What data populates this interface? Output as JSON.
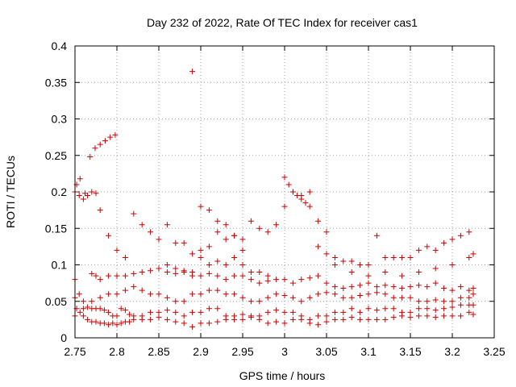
{
  "chart_data": {
    "type": "scatter",
    "title": "Day 232 of 2022, Rate Of TEC Index for receiver cas1",
    "xlabel": "GPS time / hours",
    "ylabel": "ROTI / TECUs",
    "xlim": [
      2.75,
      3.25
    ],
    "ylim": [
      0,
      0.4
    ],
    "xticks": [
      2.75,
      2.8,
      2.85,
      2.9,
      2.95,
      3.0,
      3.05,
      3.1,
      3.15,
      3.2,
      3.25
    ],
    "xtick_labels": [
      "2.75",
      "2.8",
      "2.85",
      "2.9",
      "2.95",
      "3",
      "3.05",
      "3.1",
      "3.15",
      "3.2",
      "3.25"
    ],
    "yticks": [
      0,
      0.05,
      0.1,
      0.15,
      0.2,
      0.25,
      0.3,
      0.35,
      0.4
    ],
    "ytick_labels": [
      "0",
      "0.05",
      "0.1",
      "0.15",
      "0.2",
      "0.25",
      "0.3",
      "0.35",
      "0.4"
    ],
    "grid": true,
    "marker": "+",
    "series_color": "#cc0000",
    "series": [
      {
        "name": "ROTI",
        "x": [
          2.75,
          2.752,
          2.756,
          2.76,
          2.765,
          2.77,
          2.775,
          2.78,
          2.785,
          2.79,
          2.795,
          2.8,
          2.805,
          2.81,
          2.815,
          2.82,
          2.83,
          2.84,
          2.85,
          2.86,
          2.87,
          2.88,
          2.89,
          2.9,
          2.91,
          2.92,
          2.93,
          2.94,
          2.95,
          2.96,
          2.97,
          2.98,
          2.99,
          3.0,
          3.01,
          3.02,
          3.03,
          3.04,
          3.05,
          3.06,
          3.07,
          3.08,
          3.09,
          3.1,
          3.11,
          3.12,
          3.13,
          3.14,
          3.15,
          3.16,
          3.17,
          3.18,
          3.19,
          3.2,
          3.21,
          3.22,
          3.225,
          2.75,
          2.755,
          2.76,
          2.765,
          2.77,
          2.775,
          2.78,
          2.785,
          2.79,
          2.795,
          2.8,
          2.805,
          2.81,
          2.815,
          2.82,
          2.83,
          2.84,
          2.85,
          2.86,
          2.87,
          2.88,
          2.89,
          2.9,
          2.91,
          2.92,
          2.93,
          2.94,
          2.95,
          2.96,
          2.97,
          2.98,
          2.99,
          3.0,
          3.01,
          3.02,
          3.03,
          3.04,
          3.05,
          3.06,
          3.07,
          3.08,
          3.09,
          3.1,
          3.11,
          3.12,
          3.13,
          3.14,
          3.15,
          3.16,
          3.17,
          3.18,
          3.19,
          3.2,
          3.21,
          3.22,
          3.225,
          2.75,
          2.755,
          2.76,
          2.77,
          2.775,
          2.78,
          2.79,
          2.8,
          2.81,
          2.82,
          2.83,
          2.84,
          2.85,
          2.86,
          2.87,
          2.88,
          2.89,
          2.9,
          2.91,
          2.92,
          2.93,
          2.94,
          2.95,
          2.96,
          2.97,
          2.98,
          2.99,
          3.0,
          3.01,
          3.02,
          3.03,
          3.04,
          3.05,
          3.06,
          3.07,
          3.08,
          3.09,
          3.1,
          3.11,
          3.12,
          3.13,
          3.14,
          3.15,
          3.16,
          3.17,
          3.18,
          3.19,
          3.2,
          3.21,
          3.22,
          3.225,
          2.75,
          2.76,
          2.77,
          2.78,
          2.79,
          2.8,
          2.81,
          2.82,
          2.83,
          2.84,
          2.85,
          2.86,
          2.87,
          2.88,
          2.89,
          2.9,
          2.91,
          2.92,
          2.93,
          2.94,
          2.95,
          2.96,
          2.97,
          2.98,
          2.99,
          3.0,
          3.01,
          3.02,
          3.03,
          3.04,
          3.05,
          3.06,
          3.07,
          3.08,
          3.09,
          3.1,
          3.11,
          3.12,
          3.13,
          3.14,
          3.15,
          3.16,
          3.17,
          3.18,
          3.19,
          3.2,
          3.21,
          3.22,
          3.225,
          2.752,
          2.756,
          2.762,
          2.768,
          2.774,
          2.78,
          2.786,
          2.792,
          2.798,
          2.765,
          2.77,
          2.775,
          2.78,
          2.79,
          2.8,
          2.81,
          2.82,
          2.83,
          2.84,
          2.85,
          2.86,
          2.87,
          2.88,
          2.89,
          2.9,
          2.91,
          2.92,
          2.93,
          2.94,
          2.95,
          2.9,
          2.91,
          2.92,
          2.93,
          2.94,
          2.95,
          2.96,
          2.97,
          2.98,
          2.99,
          3.0,
          3.01,
          3.02,
          3.03,
          3.04,
          3.05,
          2.89,
          3.0,
          3.005,
          3.01,
          3.015,
          3.02,
          3.025,
          3.03,
          2.86,
          2.87,
          2.88,
          2.89,
          2.9,
          2.91,
          2.92,
          2.93,
          2.94,
          2.95,
          2.96,
          2.97,
          2.98,
          3.04,
          3.05,
          3.06,
          3.07,
          3.08,
          3.09,
          3.1,
          3.11,
          3.12,
          3.13,
          3.14,
          3.15,
          3.16,
          3.17,
          3.18,
          3.19,
          3.2,
          3.21,
          3.22,
          3.06,
          3.08,
          3.1,
          3.12,
          3.14,
          3.16,
          3.18,
          3.2,
          3.22,
          3.225
        ],
        "y": [
          0.055,
          0.04,
          0.035,
          0.03,
          0.025,
          0.022,
          0.022,
          0.02,
          0.02,
          0.018,
          0.02,
          0.018,
          0.02,
          0.022,
          0.022,
          0.025,
          0.025,
          0.025,
          0.028,
          0.025,
          0.022,
          0.02,
          0.015,
          0.02,
          0.02,
          0.022,
          0.025,
          0.025,
          0.025,
          0.028,
          0.025,
          0.02,
          0.022,
          0.02,
          0.025,
          0.025,
          0.02,
          0.018,
          0.022,
          0.025,
          0.025,
          0.028,
          0.025,
          0.025,
          0.025,
          0.025,
          0.028,
          0.03,
          0.028,
          0.03,
          0.03,
          0.028,
          0.03,
          0.03,
          0.03,
          0.035,
          0.032,
          0.08,
          0.06,
          0.05,
          0.042,
          0.04,
          0.04,
          0.04,
          0.038,
          0.035,
          0.03,
          0.03,
          0.04,
          0.038,
          0.032,
          0.03,
          0.03,
          0.035,
          0.035,
          0.038,
          0.035,
          0.03,
          0.035,
          0.035,
          0.04,
          0.04,
          0.03,
          0.03,
          0.032,
          0.03,
          0.03,
          0.035,
          0.038,
          0.035,
          0.035,
          0.03,
          0.025,
          0.03,
          0.03,
          0.035,
          0.035,
          0.04,
          0.035,
          0.04,
          0.038,
          0.04,
          0.04,
          0.035,
          0.035,
          0.04,
          0.04,
          0.038,
          0.04,
          0.042,
          0.045,
          0.045,
          0.045,
          0.2,
          0.195,
          0.19,
          0.088,
          0.085,
          0.08,
          0.085,
          0.085,
          0.085,
          0.088,
          0.09,
          0.092,
          0.095,
          0.09,
          0.088,
          0.09,
          0.085,
          0.085,
          0.088,
          0.085,
          0.08,
          0.085,
          0.085,
          0.08,
          0.075,
          0.078,
          0.08,
          0.08,
          0.075,
          0.08,
          0.082,
          0.085,
          0.075,
          0.07,
          0.068,
          0.07,
          0.072,
          0.075,
          0.07,
          0.072,
          0.07,
          0.068,
          0.07,
          0.072,
          0.07,
          0.075,
          0.068,
          0.065,
          0.07,
          0.065,
          0.068,
          0.03,
          0.04,
          0.05,
          0.055,
          0.06,
          0.06,
          0.065,
          0.07,
          0.065,
          0.06,
          0.06,
          0.055,
          0.05,
          0.05,
          0.06,
          0.06,
          0.065,
          0.065,
          0.06,
          0.06,
          0.055,
          0.05,
          0.05,
          0.055,
          0.06,
          0.058,
          0.055,
          0.05,
          0.055,
          0.06,
          0.062,
          0.06,
          0.055,
          0.055,
          0.058,
          0.06,
          0.062,
          0.06,
          0.055,
          0.055,
          0.055,
          0.05,
          0.05,
          0.052,
          0.05,
          0.05,
          0.055,
          0.055,
          0.06,
          0.21,
          0.218,
          0.198,
          0.248,
          0.26,
          0.265,
          0.27,
          0.275,
          0.278,
          0.195,
          0.2,
          0.198,
          0.175,
          0.14,
          0.12,
          0.11,
          0.17,
          0.155,
          0.145,
          0.135,
          0.155,
          0.13,
          0.13,
          0.115,
          0.12,
          0.125,
          0.145,
          0.135,
          0.14,
          0.12,
          0.18,
          0.175,
          0.16,
          0.155,
          0.14,
          0.135,
          0.16,
          0.15,
          0.145,
          0.155,
          0.18,
          0.2,
          0.195,
          0.2,
          0.16,
          0.145,
          0.365,
          0.22,
          0.21,
          0.2,
          0.195,
          0.19,
          0.185,
          0.18,
          0.1,
          0.095,
          0.092,
          0.09,
          0.11,
          0.1,
          0.105,
          0.1,
          0.11,
          0.1,
          0.09,
          0.09,
          0.085,
          0.125,
          0.115,
          0.11,
          0.105,
          0.105,
          0.1,
          0.1,
          0.14,
          0.11,
          0.11,
          0.11,
          0.11,
          0.12,
          0.125,
          0.12,
          0.13,
          0.135,
          0.14,
          0.145,
          0.1,
          0.09,
          0.085,
          0.09,
          0.085,
          0.09,
          0.095,
          0.1,
          0.11,
          0.115
        ]
      }
    ]
  }
}
